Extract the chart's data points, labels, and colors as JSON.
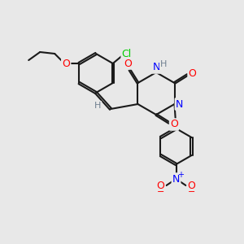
{
  "bg_color": "#e8e8e8",
  "bond_color": "#1a1a1a",
  "atom_colors": {
    "O": "#ff0000",
    "N": "#0000ff",
    "Cl": "#00cc00",
    "H": "#708090",
    "C": "#1a1a1a"
  },
  "figsize": [
    3.0,
    3.0
  ],
  "dpi": 100
}
